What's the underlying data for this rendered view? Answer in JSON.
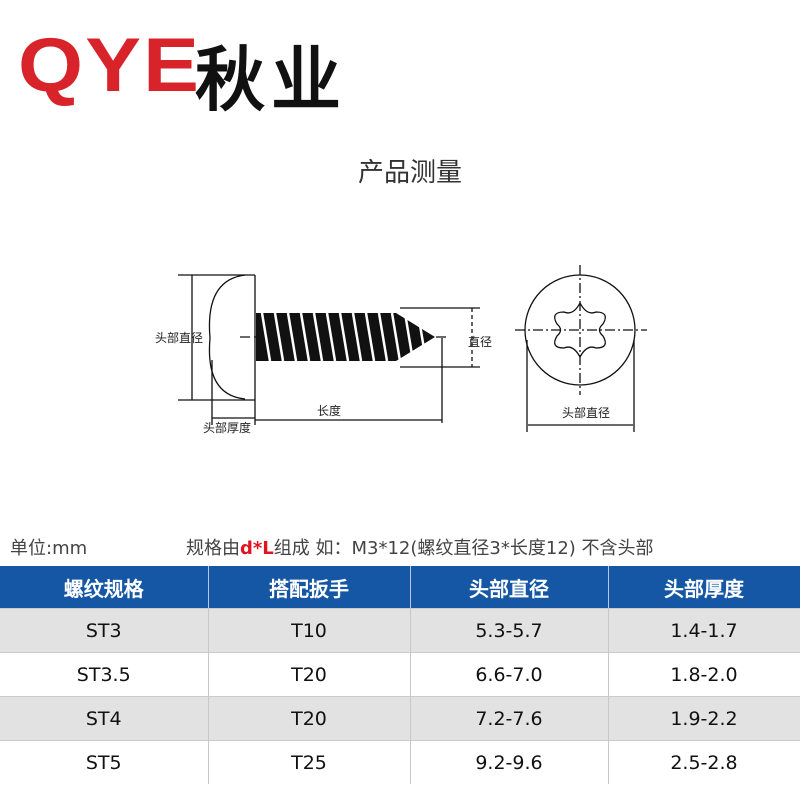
{
  "logo": {
    "brand": "QYE",
    "chinese": "秋业",
    "brand_color": "#d8232a"
  },
  "title": "产品测量",
  "diagram": {
    "head_diameter": "头部直径",
    "diameter": "直径",
    "length": "长度",
    "head_thickness": "头部厚度",
    "front_head_diameter": "头部直径"
  },
  "unit": "单位:mm",
  "spec": {
    "prefix": "规格由",
    "highlight": "d*L",
    "suffix": "组成 如：M3*12(螺纹直径3*长度12) 不含头部"
  },
  "table": {
    "header_color": "#1557a5",
    "headers": [
      "螺纹规格",
      "搭配扳手",
      "头部直径",
      "头部厚度"
    ],
    "rows": [
      [
        "ST3",
        "T10",
        "5.3-5.7",
        "1.4-1.7"
      ],
      [
        "ST3.5",
        "T20",
        "6.6-7.0",
        "1.8-2.0"
      ],
      [
        "ST4",
        "T20",
        "7.2-7.6",
        "1.9-2.2"
      ],
      [
        "ST5",
        "T25",
        "9.2-9.6",
        "2.5-2.8"
      ]
    ]
  }
}
